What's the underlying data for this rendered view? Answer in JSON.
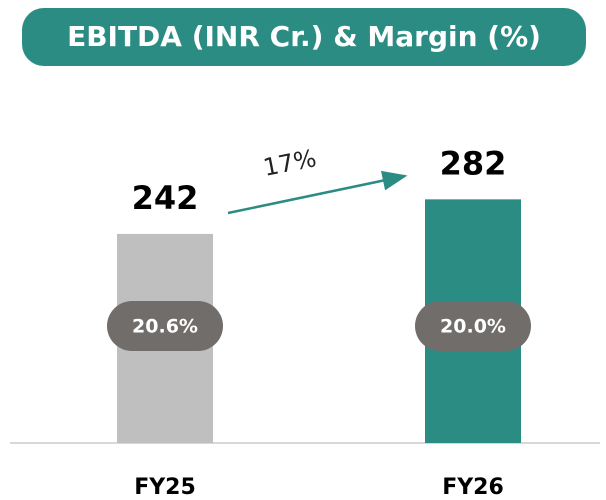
{
  "chart_data": {
    "type": "bar",
    "title": "EBITDA (INR Cr.) & Margin (%)",
    "categories": [
      "FY25",
      "FY26"
    ],
    "values": [
      242,
      282
    ],
    "colors": [
      "#bfbfbf",
      "#2a8c82"
    ],
    "margin_values": [
      20.6,
      20.0
    ],
    "margin_labels": [
      "20.6%",
      "20.0%"
    ],
    "annotation": "17%"
  }
}
